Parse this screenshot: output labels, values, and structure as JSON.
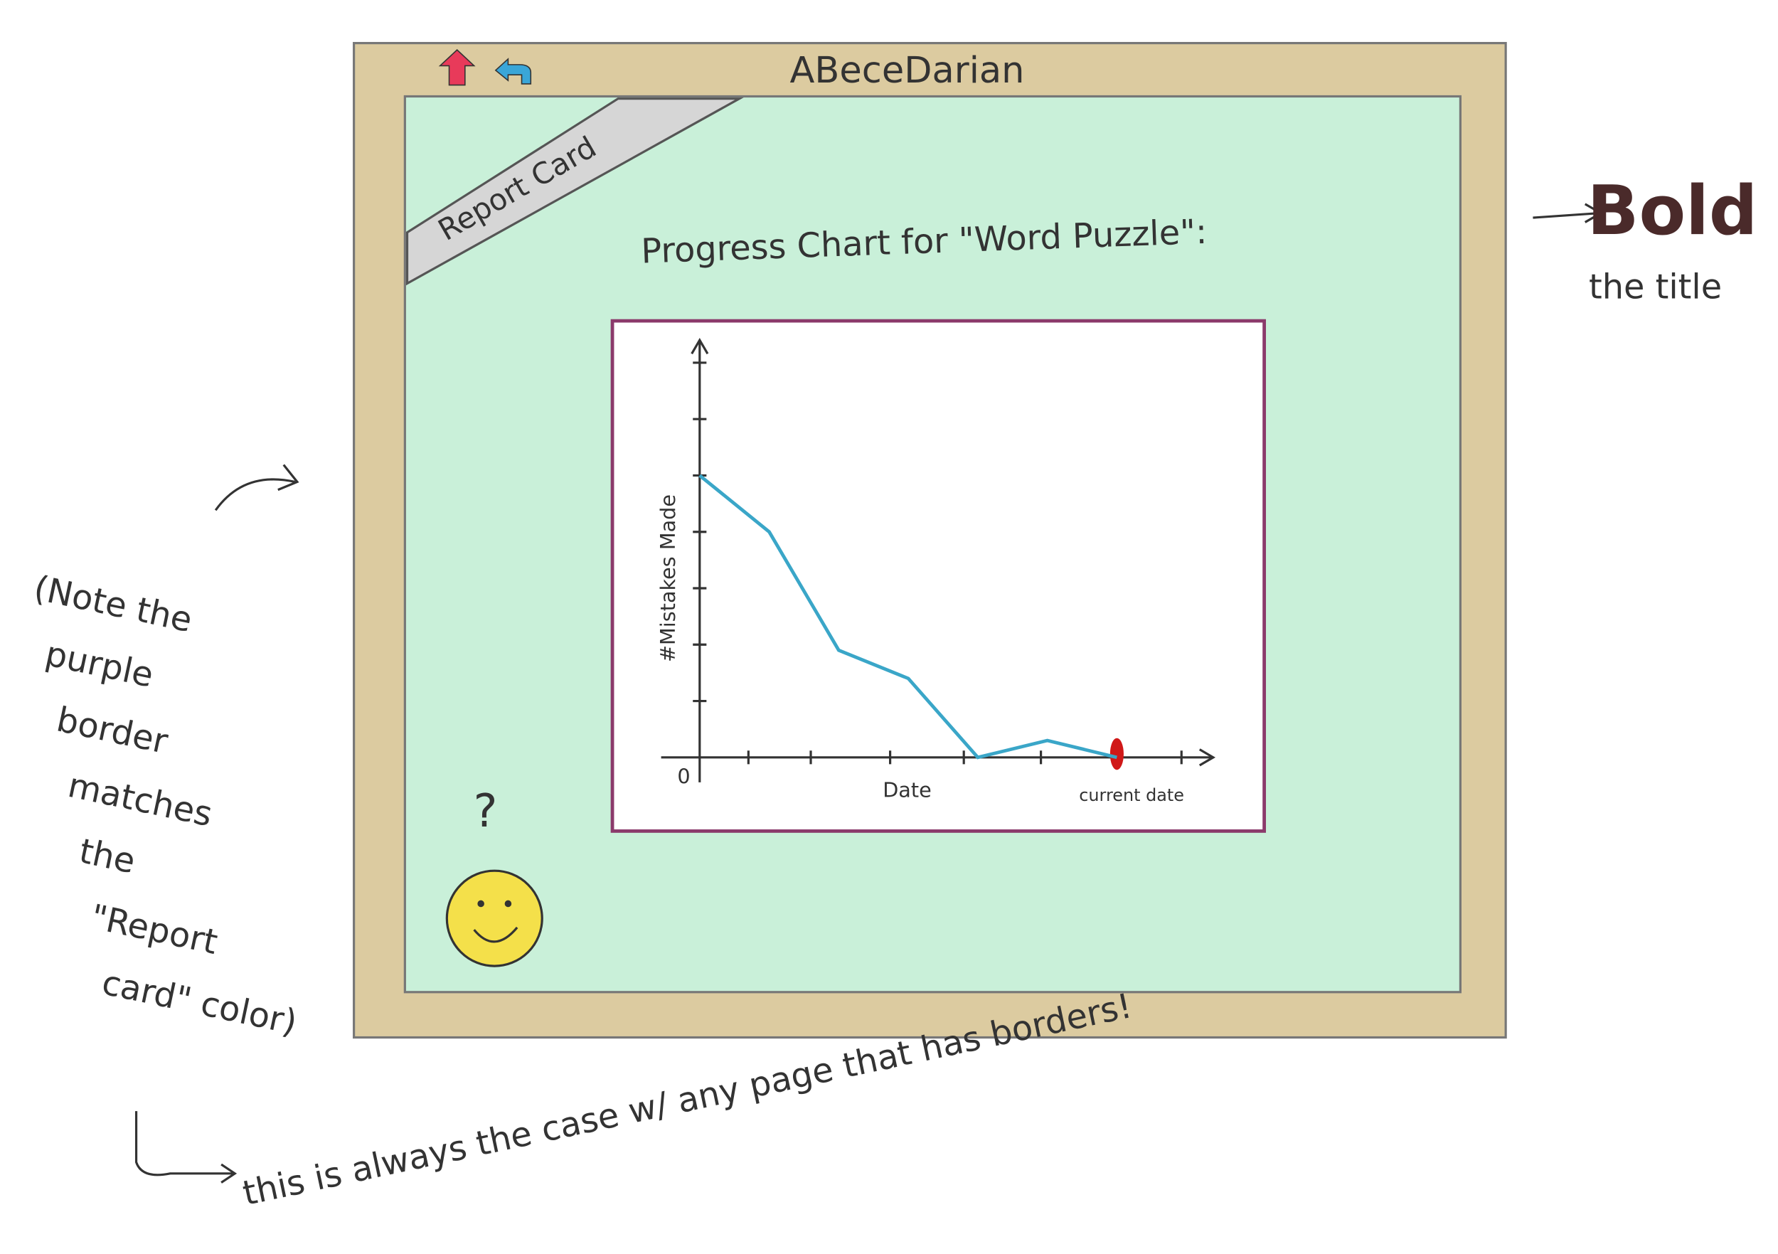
{
  "window": {
    "title": "ABeceDarian"
  },
  "tab": "Report Card",
  "chart_data": {
    "type": "line",
    "title": "Progress Chart for \"Word Puzzle\":",
    "x_label": "Date",
    "y_label": "#Mistakes Made",
    "origin_label": "0",
    "annotation": "current date",
    "categories": [
      null,
      null,
      null,
      null,
      null,
      null,
      null
    ],
    "values": [
      5,
      4,
      1.9,
      1.4,
      0,
      0.3,
      0
    ],
    "color": "#3aa6c8",
    "ylim": [
      0,
      7.4
    ],
    "yticks": [
      1,
      2,
      3,
      4,
      5,
      6,
      7
    ]
  },
  "help_icon": "?",
  "notes": {
    "bold_title": [
      "Bold",
      "the title"
    ],
    "border_note": [
      "(Note the",
      "purple",
      "border",
      "matches",
      "the",
      "\"Report",
      "card\" color)"
    ],
    "always_note": "this is always the case w/ any page that has borders!"
  }
}
